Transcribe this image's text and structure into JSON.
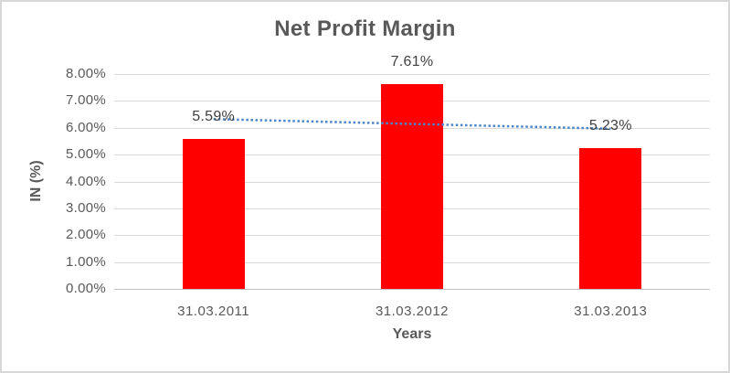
{
  "chart_data": {
    "type": "bar",
    "title": "Net Profit Margin",
    "xlabel": "Years",
    "ylabel": "IN (%)",
    "categories": [
      "31.03.2011",
      "31.03.2012",
      "31.03.2013"
    ],
    "values": [
      5.59,
      7.61,
      5.23
    ],
    "data_labels": [
      "5.59%",
      "7.61%",
      "5.23%"
    ],
    "ylim": [
      0,
      8
    ],
    "ytick_step": 1,
    "ytick_labels": [
      "0.00%",
      "1.00%",
      "2.00%",
      "3.00%",
      "4.00%",
      "5.00%",
      "6.00%",
      "7.00%",
      "8.00%"
    ],
    "grid": true,
    "legend": "none",
    "trendline": {
      "type": "linear",
      "style": "dotted"
    },
    "colors": {
      "bar": "#FF0000",
      "trendline": "#4A86C8",
      "gridline": "#D9D9D9",
      "axis_line": "#BFBFBF",
      "title_text": "#595959",
      "axis_text": "#595959",
      "label_text": "#404040"
    }
  }
}
